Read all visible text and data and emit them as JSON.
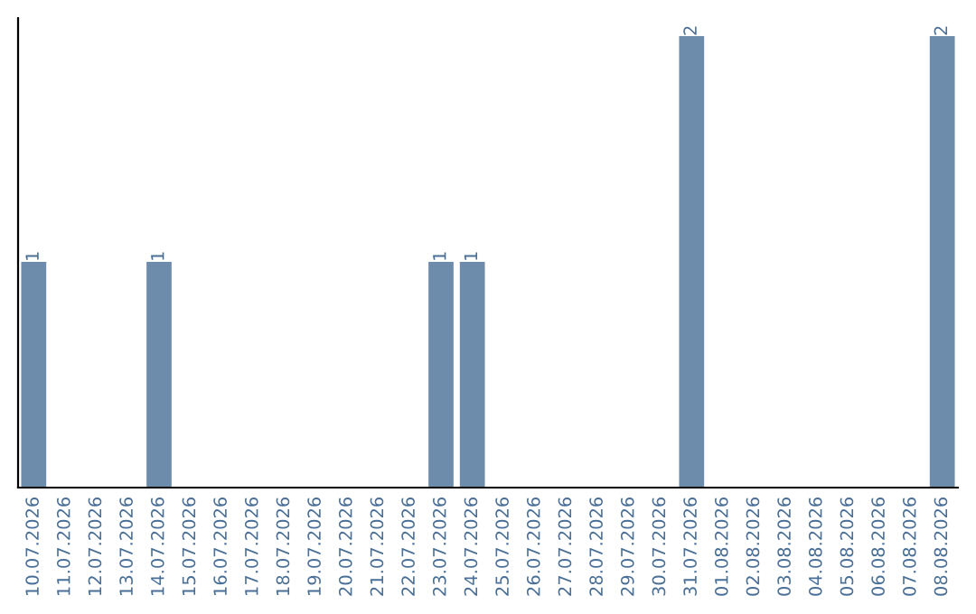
{
  "chart_data": {
    "type": "bar",
    "categories": [
      "10.07.2026",
      "11.07.2026",
      "12.07.2026",
      "13.07.2026",
      "14.07.2026",
      "15.07.2026",
      "16.07.2026",
      "17.07.2026",
      "18.07.2026",
      "19.07.2026",
      "20.07.2026",
      "21.07.2026",
      "22.07.2026",
      "23.07.2026",
      "24.07.2026",
      "25.07.2026",
      "26.07.2026",
      "27.07.2026",
      "28.07.2026",
      "29.07.2026",
      "30.07.2026",
      "31.07.2026",
      "01.08.2026",
      "02.08.2026",
      "03.08.2026",
      "04.08.2026",
      "05.08.2026",
      "06.08.2026",
      "07.08.2026",
      "08.08.2026"
    ],
    "values": [
      1,
      0,
      0,
      0,
      1,
      0,
      0,
      0,
      0,
      0,
      0,
      0,
      0,
      1,
      1,
      0,
      0,
      0,
      0,
      0,
      0,
      2,
      0,
      0,
      0,
      0,
      0,
      0,
      0,
      2
    ],
    "color": "#6d8cab",
    "value_labels": [
      "1",
      null,
      null,
      null,
      "1",
      null,
      null,
      null,
      null,
      null,
      null,
      null,
      null,
      "1",
      "1",
      null,
      null,
      null,
      null,
      null,
      null,
      "2",
      null,
      null,
      null,
      null,
      null,
      null,
      null,
      "2"
    ],
    "tick_labels": "x",
    "grid": false,
    "legend": false
  }
}
